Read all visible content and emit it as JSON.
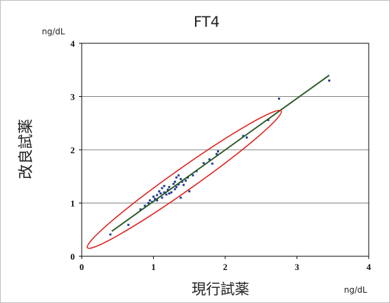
{
  "chart_data": {
    "type": "scatter",
    "title": "FT4",
    "xlabel": "現行試薬",
    "ylabel": "改良試薬",
    "x_unit": "ng/dL",
    "y_unit": "ng/dL",
    "xlim": [
      0,
      4
    ],
    "ylim": [
      0,
      4
    ],
    "x_ticks": [
      "0",
      "1",
      "2",
      "3",
      "4"
    ],
    "y_ticks": [
      "0",
      "1",
      "2",
      "3",
      "4"
    ],
    "grid": "horizontal",
    "legend": "none",
    "colors": {
      "points": "#1f3a93",
      "regression": "#2d5a27",
      "ellipse": "#e0201b",
      "grid": "#7f7f7f",
      "axis": "#000000"
    },
    "regression_line": {
      "x": [
        0.42,
        3.45
      ],
      "y": [
        0.47,
        3.4
      ]
    },
    "ellipse_annotation": {
      "x": [
        0.08,
        2.78
      ],
      "y": [
        0.16,
        2.73
      ]
    },
    "series": [
      {
        "points": [
          [
            0.4,
            0.41
          ],
          [
            0.65,
            0.59
          ],
          [
            0.82,
            0.88
          ],
          [
            0.88,
            0.95
          ],
          [
            0.93,
            1.0
          ],
          [
            0.95,
            1.05
          ],
          [
            0.98,
            1.02
          ],
          [
            1.0,
            1.12
          ],
          [
            1.02,
            1.08
          ],
          [
            1.05,
            1.15
          ],
          [
            1.05,
            1.05
          ],
          [
            1.08,
            1.22
          ],
          [
            1.1,
            1.18
          ],
          [
            1.12,
            1.1
          ],
          [
            1.12,
            1.28
          ],
          [
            1.15,
            1.32
          ],
          [
            1.15,
            1.2
          ],
          [
            1.18,
            1.16
          ],
          [
            1.2,
            1.25
          ],
          [
            1.22,
            1.3
          ],
          [
            1.22,
            1.18
          ],
          [
            1.25,
            1.2
          ],
          [
            1.28,
            1.36
          ],
          [
            1.3,
            1.4
          ],
          [
            1.3,
            1.26
          ],
          [
            1.32,
            1.48
          ],
          [
            1.32,
            1.3
          ],
          [
            1.35,
            1.52
          ],
          [
            1.35,
            1.35
          ],
          [
            1.38,
            1.45
          ],
          [
            1.38,
            1.1
          ],
          [
            1.4,
            1.4
          ],
          [
            1.42,
            1.34
          ],
          [
            1.45,
            1.42
          ],
          [
            1.48,
            1.48
          ],
          [
            1.5,
            1.22
          ],
          [
            1.55,
            1.52
          ],
          [
            1.6,
            1.6
          ],
          [
            1.7,
            1.75
          ],
          [
            1.78,
            1.82
          ],
          [
            1.82,
            1.74
          ],
          [
            1.88,
            1.92
          ],
          [
            1.9,
            1.97
          ],
          [
            2.25,
            2.26
          ],
          [
            2.3,
            2.23
          ],
          [
            2.6,
            2.56
          ],
          [
            2.75,
            2.96
          ],
          [
            3.45,
            3.3
          ]
        ]
      }
    ]
  }
}
